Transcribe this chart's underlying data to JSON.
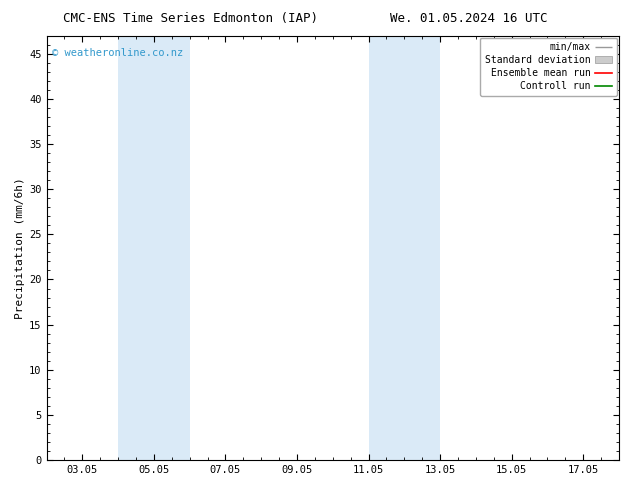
{
  "title_left": "CMC-ENS Time Series Edmonton (IAP)",
  "title_right": "We. 01.05.2024 16 UTC",
  "ylabel": "Precipitation (mm/6h)",
  "xtick_labels": [
    "03.05",
    "05.05",
    "07.05",
    "09.05",
    "11.05",
    "13.05",
    "15.05",
    "17.05"
  ],
  "xtick_positions": [
    3,
    5,
    7,
    9,
    11,
    13,
    15,
    17
  ],
  "xlim": [
    2.0,
    18.0
  ],
  "ylim": [
    0,
    47
  ],
  "ytick_positions": [
    0,
    5,
    10,
    15,
    20,
    25,
    30,
    35,
    40,
    45
  ],
  "shaded_regions": [
    {
      "xstart": 4.0,
      "xend": 6.0
    },
    {
      "xstart": 11.0,
      "xend": 13.0
    }
  ],
  "shaded_color": "#daeaf7",
  "background_color": "#ffffff",
  "plot_bg_color": "#ffffff",
  "watermark": "© weatheronline.co.nz",
  "watermark_color": "#3399cc",
  "watermark_fontsize": 7.5,
  "title_fontsize": 9,
  "axis_fontsize": 7.5,
  "ylabel_fontsize": 8
}
